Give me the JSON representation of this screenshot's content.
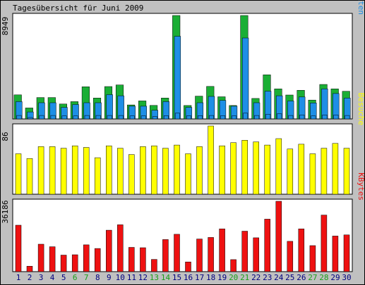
{
  "chart_data": {
    "title": "Tagesübersicht für Juni 2009",
    "type": "bar",
    "days": [
      "1",
      "2",
      "3",
      "4",
      "5",
      "6",
      "7",
      "8",
      "9",
      "10",
      "11",
      "12",
      "13",
      "14",
      "15",
      "16",
      "17",
      "18",
      "19",
      "20",
      "21",
      "22",
      "23",
      "24",
      "25",
      "26",
      "27",
      "28",
      "29",
      "30"
    ],
    "weekend_days": [
      "6",
      "7",
      "13",
      "14",
      "20",
      "21",
      "27",
      "28"
    ],
    "colors": {
      "anfragen": "#1aae35",
      "dateien": "#1e8ee6",
      "seiten": "#1e8ee6",
      "besuche": "#ffff00",
      "kbytes": "#ee1111",
      "weekend_label": "#1aa01a",
      "weekday_label": "#000080"
    },
    "panels": [
      {
        "id": "requests",
        "max_label": "8949",
        "max": 8949,
        "legend": {
          "seiten": "Seiten",
          "sep1": "/",
          "dateien": "Dateien",
          "sep2": "/",
          "anfragen": "Anfragen"
        },
        "series": [
          {
            "key": "anfragen",
            "values": [
              2080,
              950,
              1850,
              1850,
              1290,
              1500,
              2780,
              1810,
              2800,
              2940,
              1210,
              1560,
              1170,
              1810,
              8949,
              1160,
              1970,
              2810,
              1920,
              1160,
              8949,
              1770,
              3820,
              2600,
              2070,
              2480,
              1630,
              2980,
              2600,
              2390
            ]
          },
          {
            "key": "dateien",
            "values": [
              1500,
              600,
              1400,
              1400,
              1000,
              1250,
              1400,
              1400,
              2100,
              2000,
              1100,
              1100,
              750,
              1500,
              7150,
              1000,
              1400,
              1950,
              1600,
              1100,
              7000,
              1400,
              2400,
              2000,
              1550,
              1900,
              1380,
              2600,
              2200,
              1800
            ]
          },
          {
            "key": "seiten",
            "values": [
              300,
              120,
              300,
              300,
              260,
              260,
              300,
              300,
              300,
              300,
              260,
              260,
              200,
              280,
              500,
              260,
              280,
              300,
              280,
              260,
              500,
              300,
              400,
              450,
              300,
              350,
              260,
              350,
              350,
              300
            ]
          }
        ]
      },
      {
        "id": "visits",
        "max_label": "86",
        "max": 86,
        "legend": {
          "besuche": "Besuche"
        },
        "series": [
          {
            "key": "besuche",
            "values": [
              51,
              45,
              60,
              60,
              58,
              61,
              59,
              46,
              61,
              58,
              50,
              60,
              61,
              58,
              62,
              51,
              60,
              86,
              61,
              65,
              68,
              66,
              62,
              70,
              57,
              63,
              51,
              58,
              64,
              58
            ]
          }
        ]
      },
      {
        "id": "kbytes",
        "max_label": "36186",
        "max": 36186,
        "legend": {
          "kbytes": "KBytes"
        },
        "series": [
          {
            "key": "kbytes",
            "values": [
              23900,
              2800,
              14100,
              12800,
              8500,
              8700,
              13800,
              11900,
              21300,
              24100,
              12500,
              12300,
              6300,
              16500,
              19200,
              5000,
              16800,
              17600,
              22000,
              6200,
              20800,
              17400,
              27000,
              36186,
              15600,
              22000,
              13400,
              29100,
              18300,
              18900
            ]
          }
        ]
      }
    ]
  }
}
